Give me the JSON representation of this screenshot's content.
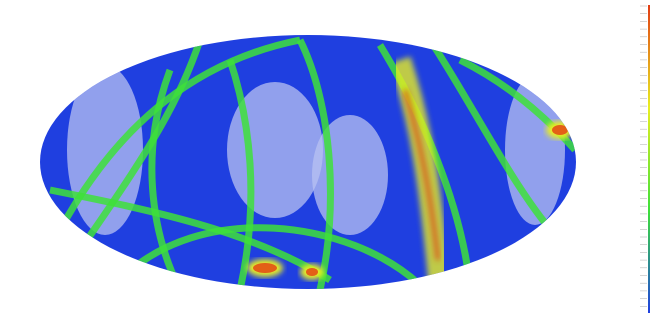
{
  "palette": {
    "ocean": "#1f3fe0",
    "sparse": "#b8c2f2",
    "band": "#3ee03a",
    "dense": "#e8ee22",
    "peak": "#e23c14"
  }
}
